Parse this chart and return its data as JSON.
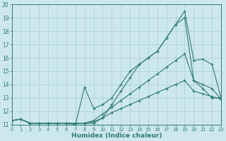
{
  "background_color": "#cde8ec",
  "grid_color": "#aacdd2",
  "line_color": "#2d7b72",
  "xlabel": "Humidex (Indice chaleur)",
  "xlim": [
    0,
    23
  ],
  "ylim": [
    11,
    20
  ],
  "yticks": [
    11,
    12,
    13,
    14,
    15,
    16,
    17,
    18,
    19,
    20
  ],
  "xticks": [
    0,
    1,
    2,
    3,
    4,
    5,
    6,
    7,
    8,
    9,
    10,
    11,
    12,
    13,
    14,
    15,
    16,
    17,
    18,
    19,
    20,
    21,
    22,
    23
  ],
  "lines": [
    {
      "y": [
        11.3,
        11.4,
        11.1,
        11.1,
        11.1,
        11.1,
        11.1,
        11.1,
        11.1,
        11.1,
        11.5,
        12.5,
        13.5,
        14.5,
        15.5,
        16.0,
        16.5,
        17.5,
        18.5,
        19.5,
        15.8,
        15.9,
        15.5,
        13.0
      ]
    },
    {
      "y": [
        11.3,
        11.4,
        11.1,
        11.1,
        11.1,
        11.1,
        11.1,
        11.0,
        13.8,
        12.2,
        12.5,
        13.0,
        14.0,
        15.0,
        15.5,
        16.0,
        16.5,
        17.5,
        18.5,
        19.0,
        14.3,
        13.7,
        13.0,
        13.0
      ]
    },
    {
      "y": [
        11.3,
        11.4,
        11.1,
        11.1,
        11.1,
        11.1,
        11.1,
        11.1,
        11.1,
        11.3,
        11.8,
        12.3,
        12.8,
        13.3,
        13.8,
        14.3,
        14.8,
        15.3,
        15.8,
        16.3,
        14.3,
        14.0,
        13.7,
        12.9
      ]
    },
    {
      "y": [
        11.3,
        11.4,
        11.1,
        11.1,
        11.1,
        11.1,
        11.1,
        11.1,
        11.1,
        11.2,
        11.5,
        11.9,
        12.2,
        12.5,
        12.8,
        13.1,
        13.4,
        13.7,
        14.0,
        14.3,
        13.5,
        13.3,
        13.1,
        12.9
      ]
    }
  ]
}
